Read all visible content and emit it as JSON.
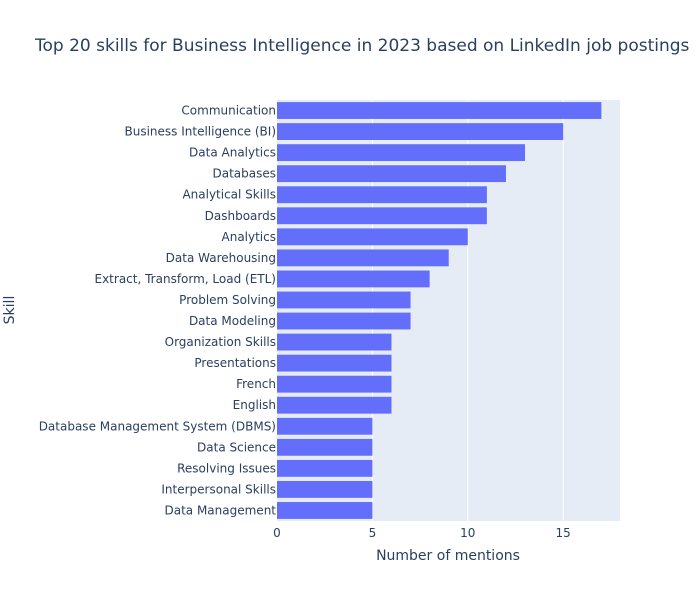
{
  "chart_data": {
    "type": "bar",
    "orientation": "horizontal",
    "title": "Top 20 skills for Business Intelligence in 2023 based on LinkedIn job postings",
    "xlabel": "Number of mentions",
    "ylabel": "Skill",
    "xlim": [
      0,
      18
    ],
    "xticks": [
      0,
      5,
      10,
      15
    ],
    "grid": true,
    "bar_color": "#636efa",
    "plot_bg": "#e5ecf6",
    "text_color": "#2a3f5f",
    "categories": [
      "Communication",
      "Business Intelligence (BI)",
      "Data Analytics",
      "Databases",
      "Analytical Skills",
      "Dashboards",
      "Analytics",
      "Data Warehousing",
      "Extract, Transform, Load (ETL)",
      "Problem Solving",
      "Data Modeling",
      "Organization Skills",
      "Presentations",
      "French",
      "English",
      "Database Management System (DBMS)",
      "Data Science",
      "Resolving Issues",
      "Interpersonal Skills",
      "Data Management"
    ],
    "values": [
      17,
      15,
      13,
      12,
      11,
      11,
      10,
      9,
      8,
      7,
      7,
      6,
      6,
      6,
      6,
      5,
      5,
      5,
      5,
      5
    ]
  }
}
